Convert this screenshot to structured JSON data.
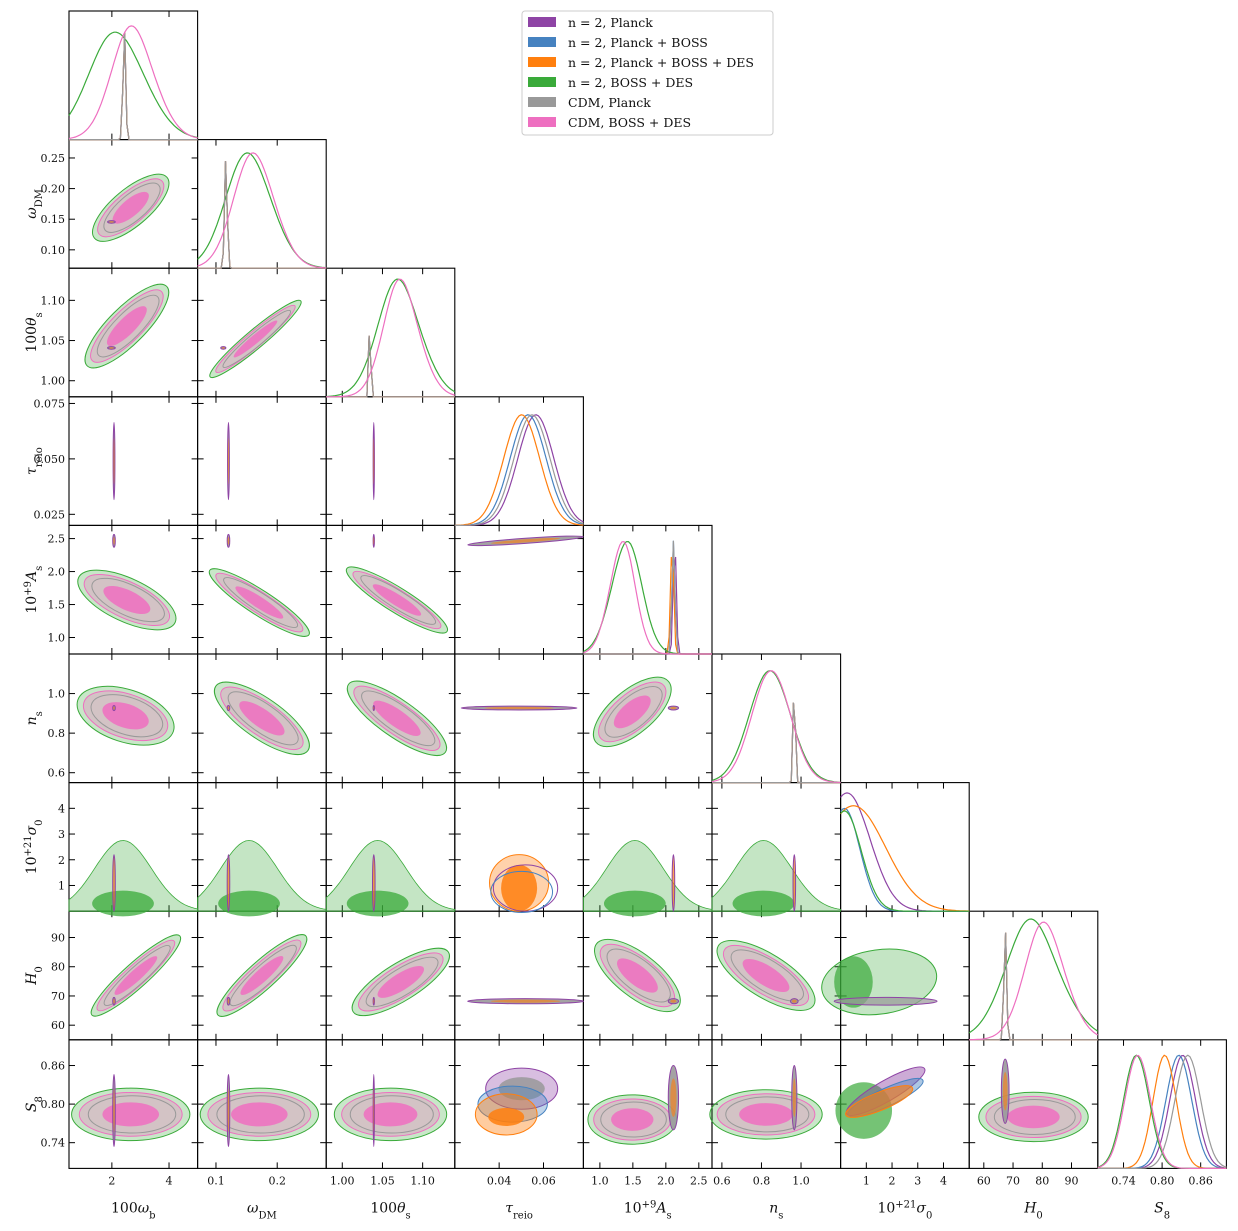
{
  "chart_data": {
    "type": "corner",
    "params": [
      {
        "key": "wb",
        "ylabel": {
          "base": "ω",
          "sub": "DM",
          "pre": "",
          "sup": ""
        },
        "xlabel": {
          "pre": "100",
          "base": "ω",
          "sub": "b",
          "sup": ""
        },
        "ticks": [
          2,
          4
        ],
        "tickLabels": [
          "2",
          "4"
        ],
        "range": [
          0.5,
          5.0
        ]
      },
      {
        "key": "wdm",
        "ylabel": {
          "pre": "",
          "base": "ω",
          "sub": "DM",
          "sup": ""
        },
        "xlabel": {
          "pre": "",
          "base": "ω",
          "sub": "DM",
          "sup": ""
        },
        "ticks": [
          0.1,
          0.2
        ],
        "tickLabels": [
          "0.1",
          "0.2"
        ],
        "range": [
          0.07,
          0.28
        ],
        "yticks": [
          0.1,
          0.15,
          0.2,
          0.25
        ],
        "ytickLabels": [
          "0.10",
          "0.15",
          "0.20",
          "0.25"
        ]
      },
      {
        "key": "th",
        "ylabel": {
          "pre": "100",
          "base": "θ",
          "sub": "s",
          "sup": ""
        },
        "xlabel": {
          "pre": "100",
          "base": "θ",
          "sub": "s",
          "sup": ""
        },
        "ticks": [
          1.0,
          1.05,
          1.1
        ],
        "tickLabels": [
          "1.00",
          "1.05",
          "1.10"
        ],
        "range": [
          0.98,
          1.14
        ]
      },
      {
        "key": "tau",
        "ylabel": {
          "pre": "",
          "base": "τ",
          "sub": "reio",
          "sup": ""
        },
        "xlabel": {
          "pre": "",
          "base": "τ",
          "sub": "reio",
          "sup": ""
        },
        "ticks": [
          0.04,
          0.06
        ],
        "tickLabels": [
          "0.04",
          "0.06"
        ],
        "range": [
          0.02,
          0.078
        ],
        "yticks": [
          0.025,
          0.05,
          0.075
        ],
        "ytickLabels": [
          "0.025",
          "0.050",
          "0.075"
        ]
      },
      {
        "key": "As",
        "ylabel": {
          "pre": "10",
          "sup": "+9",
          "base": "A",
          "sub": "s"
        },
        "xlabel": {
          "pre": "10",
          "sup": "+9",
          "base": "A",
          "sub": "s"
        },
        "ticks": [
          1.0,
          1.5,
          2.0,
          2.5
        ],
        "tickLabels": [
          "1.0",
          "1.5",
          "2.0",
          "2.5"
        ],
        "range": [
          0.75,
          2.7
        ]
      },
      {
        "key": "ns",
        "ylabel": {
          "pre": "",
          "base": "n",
          "sub": "s",
          "sup": ""
        },
        "xlabel": {
          "pre": "",
          "base": "n",
          "sub": "s",
          "sup": ""
        },
        "ticks": [
          0.6,
          0.8,
          1.0
        ],
        "tickLabels": [
          "0.6",
          "0.8",
          "1.0"
        ],
        "range": [
          0.55,
          1.2
        ]
      },
      {
        "key": "sig",
        "ylabel": {
          "pre": "10",
          "sup": "+21",
          "base": "σ",
          "sub": "0"
        },
        "xlabel": {
          "pre": "10",
          "sup": "+21",
          "base": "σ",
          "sub": "0"
        },
        "ticks": [
          1,
          2,
          3,
          4
        ],
        "tickLabels": [
          "1",
          "2",
          "3",
          "4"
        ],
        "range": [
          0,
          5
        ]
      },
      {
        "key": "H0",
        "ylabel": {
          "pre": "",
          "base": "H",
          "sub": "0",
          "sup": ""
        },
        "xlabel": {
          "pre": "",
          "base": "H",
          "sub": "0",
          "sup": ""
        },
        "ticks": [
          60,
          70,
          80,
          90
        ],
        "tickLabels": [
          "60",
          "70",
          "80",
          "90"
        ],
        "range": [
          55,
          99
        ]
      },
      {
        "key": "S8",
        "ylabel": {
          "pre": "",
          "base": "S",
          "sub": "8",
          "sup": ""
        },
        "xlabel": {
          "pre": "",
          "base": "S",
          "sub": "8",
          "sup": ""
        },
        "ticks": [
          0.74,
          0.8,
          0.86
        ],
        "tickLabels": [
          "0.74",
          "0.80",
          "0.86"
        ],
        "range": [
          0.7,
          0.9
        ]
      }
    ],
    "series": [
      {
        "name": "n = 2, Planck",
        "color": "#8e44a5"
      },
      {
        "name": "n = 2, Planck + BOSS",
        "color": "#4682c0"
      },
      {
        "name": "n = 2, Planck + BOSS + DES",
        "color": "#ff7f0e"
      },
      {
        "name": "n = 2, BOSS + DES",
        "color": "#3aaa3a"
      },
      {
        "name": "CDM, Planck",
        "color": "#999999"
      },
      {
        "name": "CDM, BOSS + DES",
        "color": "#ee6fc0"
      }
    ],
    "legend": "top-right",
    "grid": false
  }
}
